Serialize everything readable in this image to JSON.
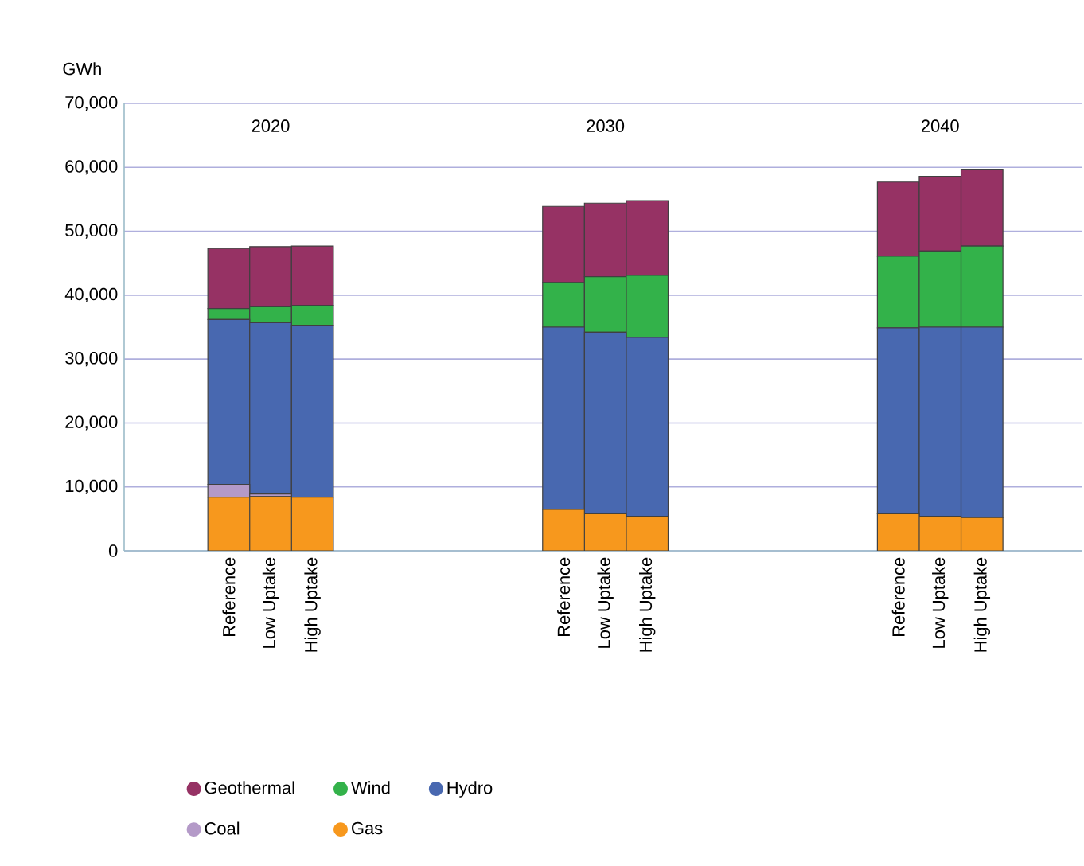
{
  "chart_data": {
    "type": "bar",
    "stacked": true,
    "ylabel": "GWh",
    "categories": [
      null,
      null,
      "Reference",
      "Low Uptake",
      "High Uptake",
      null,
      null,
      null,
      null,
      null,
      "Reference",
      "Low Uptake",
      "High Uptake",
      null,
      null,
      null,
      null,
      null,
      "Reference",
      "Low Uptake",
      "High Uptake",
      null,
      null
    ],
    "annotations": [
      "2020",
      "2030",
      "2040"
    ],
    "series": [
      {
        "name": "Gas",
        "color": "#f7981d",
        "values": [
          null,
          null,
          8400,
          8500,
          8400,
          null,
          null,
          null,
          null,
          null,
          6500,
          5800,
          5400,
          null,
          null,
          null,
          null,
          null,
          5800,
          5400,
          5200,
          null,
          null
        ]
      },
      {
        "name": "Coal",
        "color": "#b49ac8",
        "values": [
          null,
          null,
          2000,
          400,
          0,
          null,
          null,
          null,
          null,
          null,
          0,
          0,
          0,
          null,
          null,
          null,
          null,
          null,
          0,
          0,
          0,
          null,
          null
        ]
      },
      {
        "name": "Hydro",
        "color": "#4868b0",
        "values": [
          null,
          null,
          25800,
          26800,
          26900,
          null,
          null,
          null,
          null,
          null,
          28500,
          28400,
          28000,
          null,
          null,
          null,
          null,
          null,
          29100,
          29600,
          29800,
          null,
          null
        ]
      },
      {
        "name": "Wind",
        "color": "#33b24a",
        "values": [
          null,
          null,
          1700,
          2500,
          3100,
          null,
          null,
          null,
          null,
          null,
          7000,
          8700,
          9700,
          null,
          null,
          null,
          null,
          null,
          11200,
          11900,
          12700,
          null,
          null
        ]
      },
      {
        "name": "Geothermal",
        "color": "#963264",
        "values": [
          null,
          null,
          9400,
          9400,
          9300,
          null,
          null,
          null,
          null,
          null,
          11900,
          11500,
          11700,
          null,
          null,
          null,
          null,
          null,
          11600,
          11700,
          12000,
          null,
          null
        ]
      }
    ],
    "ylim": [
      0,
      70000
    ],
    "yticks": [
      0,
      {
        "value": 10000,
        "label": "10,000"
      },
      {
        "value": 20000,
        "label": "20,000"
      },
      {
        "value": 30000,
        "label": "30,000"
      },
      {
        "value": 40000,
        "label": "40,000"
      },
      {
        "value": 50000,
        "label": "50,000"
      },
      {
        "value": 60000,
        "label": "60,000"
      },
      {
        "value": 70000,
        "label": "70,000"
      }
    ],
    "grid": "y",
    "legend": "bottom"
  }
}
